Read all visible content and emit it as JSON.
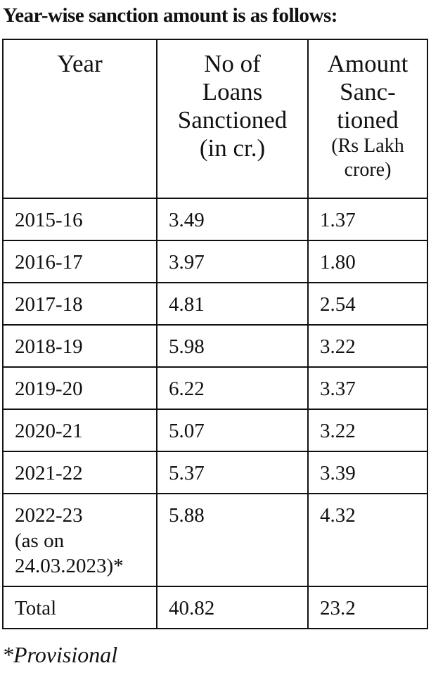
{
  "title": "Year-wise sanction amount is as follows:",
  "table": {
    "header": [
      [
        "Year"
      ],
      [
        "No of",
        "Loans",
        "Sanctioned",
        "(in cr.)"
      ],
      [
        "Amount",
        "Sanc-",
        "tioned",
        "(Rs Lakh",
        "crore)"
      ]
    ],
    "rows": [
      [
        "2015-16",
        "3.49",
        "1.37"
      ],
      [
        "2016-17",
        "3.97",
        "1.80"
      ],
      [
        "2017-18",
        "4.81",
        "2.54"
      ],
      [
        "2018-19",
        "5.98",
        "3.22"
      ],
      [
        "2019-20",
        "6.22",
        "3.37"
      ],
      [
        "2020-21",
        "5.07",
        "3.22"
      ],
      [
        "2021-22",
        "5.37",
        "3.39"
      ],
      [
        [
          "2022-23",
          "(as on",
          "24.03.2023)*"
        ],
        "5.88",
        "4.32"
      ],
      [
        "Total",
        "40.82",
        "23.2"
      ]
    ]
  },
  "footnote": "*Provisional"
}
